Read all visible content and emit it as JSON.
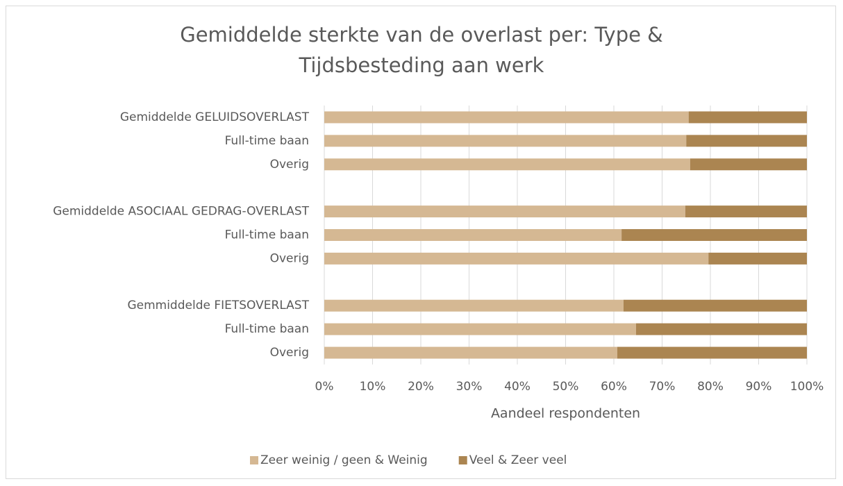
{
  "chart_data": {
    "type": "stacked-bar-horizontal",
    "title": "Gemiddelde sterkte van de overlast per: Type & Tijdsbesteding aan werk",
    "categories": [
      "Gemiddelde GELUIDSOVERLAST",
      "Full-time baan",
      "Overig",
      null,
      "Gemiddelde ASOCIAAL GEDRAG-OVERLAST",
      "Full-time baan",
      "Overig",
      null,
      "Gemmiddelde FIETSOVERLAST",
      "Full-time baan",
      "Overig"
    ],
    "series": [
      {
        "name": "Zeer weinig / geen & Weinig",
        "color": "#d5b893",
        "values": [
          75.5,
          75.0,
          75.8,
          null,
          74.8,
          61.6,
          79.6,
          null,
          62.0,
          64.6,
          60.7
        ]
      },
      {
        "name": "Veel & Zeer veel",
        "color": "#ab8551",
        "values": [
          24.5,
          25.0,
          24.2,
          null,
          25.2,
          38.4,
          20.4,
          null,
          38.0,
          35.4,
          39.3
        ]
      }
    ],
    "xlabel": "Aandeel respondenten",
    "xlim": [
      0,
      100
    ],
    "xticks": [
      {
        "value": 0,
        "label": "0%"
      },
      {
        "value": 10,
        "label": "10%"
      },
      {
        "value": 20,
        "label": "20%"
      },
      {
        "value": 30,
        "label": "30%"
      },
      {
        "value": 40,
        "label": "40%"
      },
      {
        "value": 50,
        "label": "50%"
      },
      {
        "value": 60,
        "label": "60%"
      },
      {
        "value": 70,
        "label": "70%"
      },
      {
        "value": 80,
        "label": "80%"
      },
      {
        "value": 90,
        "label": "90%"
      },
      {
        "value": 100,
        "label": "100%"
      }
    ],
    "grid": true,
    "legend": "bottom"
  }
}
